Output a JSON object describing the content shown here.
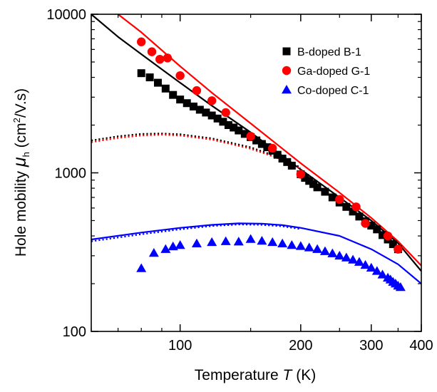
{
  "chart_data": {
    "type": "scatter",
    "title": "",
    "x_axis": {
      "label": "Temperature",
      "symbol": "T",
      "unit": "(K)",
      "scale": "log",
      "range": [
        60,
        400
      ],
      "tick_labels": [
        {
          "value": 100,
          "label": "100"
        },
        {
          "value": 200,
          "label": "200"
        },
        {
          "value": 300,
          "label": "300"
        },
        {
          "value": 400,
          "label": "400"
        }
      ]
    },
    "y_axis": {
      "label": "Hole mobility",
      "symbol": "μ",
      "subscript": "h",
      "unit_prefix": "(cm",
      "unit_sup": "2",
      "unit_suffix": "/V.s)",
      "scale": "log",
      "range": [
        100,
        10000
      ],
      "tick_labels": [
        {
          "value": 100,
          "label": "100"
        },
        {
          "value": 1000,
          "label": "1000"
        },
        {
          "value": 10000,
          "label": "10000"
        }
      ]
    },
    "legend_position": "top-right",
    "grid": false,
    "series": [
      {
        "name": "B-doped B-1",
        "marker": "square",
        "color": "#000000",
        "points": [
          [
            80,
            4250
          ],
          [
            84,
            4000
          ],
          [
            88,
            3700
          ],
          [
            92,
            3400
          ],
          [
            96,
            3100
          ],
          [
            100,
            2900
          ],
          [
            104,
            2750
          ],
          [
            108,
            2620
          ],
          [
            112,
            2500
          ],
          [
            116,
            2400
          ],
          [
            120,
            2300
          ],
          [
            124,
            2200
          ],
          [
            128,
            2100
          ],
          [
            132,
            2000
          ],
          [
            136,
            1930
          ],
          [
            140,
            1850
          ],
          [
            145,
            1760
          ],
          [
            150,
            1680
          ],
          [
            155,
            1600
          ],
          [
            160,
            1520
          ],
          [
            165,
            1450
          ],
          [
            170,
            1380
          ],
          [
            175,
            1300
          ],
          [
            180,
            1230
          ],
          [
            185,
            1170
          ],
          [
            190,
            1110
          ],
          [
            200,
            980
          ],
          [
            205,
            930
          ],
          [
            210,
            890
          ],
          [
            215,
            850
          ],
          [
            220,
            810
          ],
          [
            230,
            760
          ],
          [
            240,
            700
          ],
          [
            250,
            650
          ],
          [
            260,
            610
          ],
          [
            270,
            570
          ],
          [
            280,
            530
          ],
          [
            290,
            495
          ],
          [
            300,
            465
          ],
          [
            310,
            440
          ],
          [
            320,
            405
          ],
          [
            330,
            380
          ],
          [
            340,
            355
          ],
          [
            350,
            330
          ]
        ]
      },
      {
        "name": "Ga-doped G-1",
        "marker": "circle",
        "color": "#ff0000",
        "points": [
          [
            80,
            6700
          ],
          [
            85,
            5800
          ],
          [
            89,
            5200
          ],
          [
            93,
            5300
          ],
          [
            100,
            4100
          ],
          [
            110,
            3300
          ],
          [
            120,
            2850
          ],
          [
            130,
            2400
          ],
          [
            150,
            1700
          ],
          [
            170,
            1430
          ],
          [
            200,
            980
          ],
          [
            250,
            680
          ],
          [
            275,
            610
          ],
          [
            290,
            480
          ],
          [
            330,
            400
          ],
          [
            350,
            330
          ]
        ]
      },
      {
        "name": "Co-doped C-1",
        "marker": "triangle",
        "color": "#0000ff",
        "points": [
          [
            80,
            250
          ],
          [
            86,
            312
          ],
          [
            92,
            330
          ],
          [
            96,
            343
          ],
          [
            100,
            350
          ],
          [
            110,
            358
          ],
          [
            120,
            365
          ],
          [
            130,
            370
          ],
          [
            140,
            368
          ],
          [
            150,
            382
          ],
          [
            160,
            372
          ],
          [
            170,
            365
          ],
          [
            180,
            358
          ],
          [
            190,
            350
          ],
          [
            200,
            345
          ],
          [
            210,
            338
          ],
          [
            220,
            330
          ],
          [
            230,
            320
          ],
          [
            240,
            310
          ],
          [
            250,
            300
          ],
          [
            260,
            292
          ],
          [
            270,
            283
          ],
          [
            280,
            274
          ],
          [
            290,
            262
          ],
          [
            300,
            252
          ],
          [
            310,
            240
          ],
          [
            320,
            228
          ],
          [
            330,
            218
          ],
          [
            335,
            212
          ],
          [
            340,
            205
          ],
          [
            345,
            200
          ],
          [
            350,
            194
          ],
          [
            355,
            190
          ]
        ]
      }
    ],
    "curves": [
      {
        "color": "#000000",
        "style": "solid",
        "points": [
          [
            60,
            10000
          ],
          [
            70,
            7200
          ],
          [
            80,
            5600
          ],
          [
            90,
            4500
          ],
          [
            100,
            3700
          ],
          [
            120,
            2650
          ],
          [
            150,
            1800
          ],
          [
            200,
            1050
          ],
          [
            250,
            700
          ],
          [
            300,
            500
          ],
          [
            350,
            360
          ],
          [
            400,
            240
          ]
        ]
      },
      {
        "color": "#ff0000",
        "style": "solid",
        "points": [
          [
            70,
            10000
          ],
          [
            80,
            7700
          ],
          [
            100,
            4700
          ],
          [
            120,
            3200
          ],
          [
            150,
            2050
          ],
          [
            200,
            1150
          ],
          [
            250,
            750
          ],
          [
            300,
            520
          ],
          [
            350,
            370
          ],
          [
            400,
            260
          ]
        ]
      },
      {
        "color": "#000000",
        "style": "dotted",
        "points": [
          [
            60,
            1600
          ],
          [
            70,
            1700
          ],
          [
            80,
            1760
          ],
          [
            90,
            1770
          ],
          [
            100,
            1750
          ],
          [
            120,
            1650
          ],
          [
            150,
            1450
          ],
          [
            180,
            1230
          ],
          [
            200,
            1080
          ]
        ]
      },
      {
        "color": "#ff0000",
        "style": "dotted",
        "points": [
          [
            60,
            1560
          ],
          [
            70,
            1660
          ],
          [
            80,
            1720
          ],
          [
            90,
            1740
          ],
          [
            100,
            1720
          ],
          [
            120,
            1620
          ],
          [
            150,
            1420
          ],
          [
            180,
            1210
          ],
          [
            200,
            1060
          ]
        ]
      },
      {
        "color": "#0000ff",
        "style": "solid",
        "points": [
          [
            60,
            380
          ],
          [
            80,
            420
          ],
          [
            100,
            450
          ],
          [
            120,
            470
          ],
          [
            140,
            480
          ],
          [
            160,
            478
          ],
          [
            180,
            468
          ],
          [
            200,
            450
          ],
          [
            250,
            400
          ],
          [
            300,
            330
          ],
          [
            350,
            265
          ],
          [
            400,
            200
          ]
        ]
      },
      {
        "color": "#0000ff",
        "style": "dotted",
        "points": [
          [
            60,
            370
          ],
          [
            80,
            410
          ],
          [
            100,
            440
          ],
          [
            120,
            462
          ],
          [
            140,
            472
          ],
          [
            160,
            470
          ],
          [
            180,
            460
          ],
          [
            200,
            442
          ]
        ]
      }
    ]
  }
}
